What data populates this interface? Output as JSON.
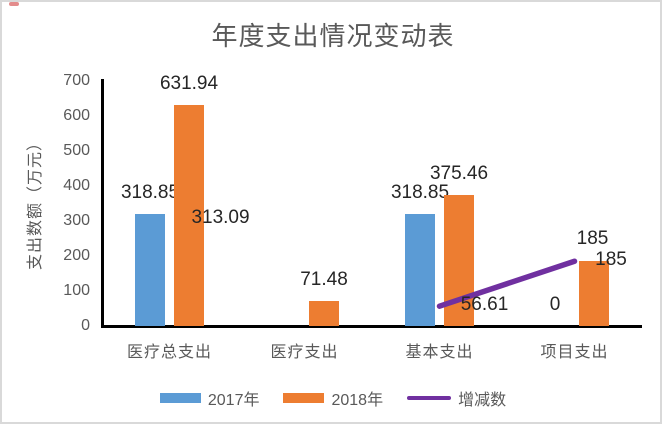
{
  "chart_data": {
    "type": "bar",
    "title": "年度支出情况变动表",
    "xlabel": "",
    "ylabel": "支出数额（万元）",
    "categories": [
      "医疗总支出",
      "医疗支出",
      "基本支出",
      "项目支出"
    ],
    "y_ticks": [
      0,
      100,
      200,
      300,
      400,
      500,
      600,
      700
    ],
    "ylim": [
      0,
      700
    ],
    "grid": false,
    "legend_position": "bottom",
    "series": [
      {
        "name": "2017年",
        "type": "bar",
        "color": "#5B9BD5",
        "values": [
          318.85,
          null,
          318.85,
          0
        ],
        "labels": [
          "318.85",
          null,
          "318.85",
          "0"
        ],
        "label_dx": [
          0,
          0,
          0,
          0
        ],
        "label_dy": [
          0,
          0,
          0,
          0
        ]
      },
      {
        "name": "2018年",
        "type": "bar",
        "color": "#ED7D31",
        "values": [
          631.94,
          71.48,
          375.46,
          185
        ],
        "labels": [
          "631.94",
          "71.48",
          "375.46",
          "185"
        ],
        "label_dx": [
          0,
          0,
          0,
          17
        ],
        "label_dy": [
          0,
          0,
          0,
          20
        ]
      },
      {
        "name": "增减数",
        "type": "line",
        "color": "#7030A0",
        "values": [
          313.09,
          null,
          56.61,
          185
        ],
        "labels": [
          "313.09",
          null,
          "56.61",
          "185"
        ],
        "label_dx": [
          51,
          0,
          45,
          18
        ],
        "label_dy": [
          2,
          0,
          -1,
          -22
        ]
      }
    ]
  },
  "colors": {
    "axis_line": "#000000",
    "text_muted": "#595959",
    "data_label": "#262626",
    "frame_border": "#D9D9D9",
    "artifact_red": "#C00000"
  }
}
